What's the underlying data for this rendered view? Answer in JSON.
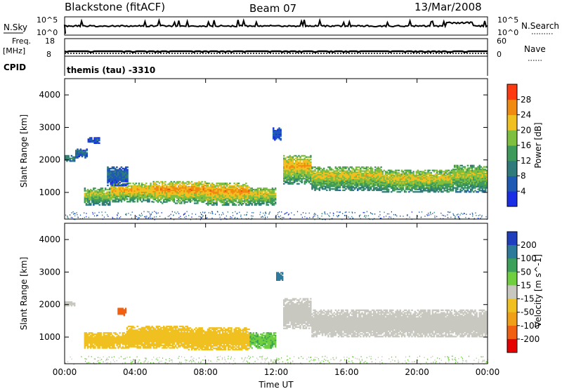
{
  "header": {
    "station": "Blackstone (fitACF)",
    "beam": "Beam 07",
    "date": "13/Mar/2008"
  },
  "strip_labels": {
    "nsky": "N.Sky",
    "nsky_hi": "10^5",
    "nsky_lo": "10^0",
    "nsearch": "N.Search",
    "nsearch_hi": "10^5",
    "nsearch_lo": "10^0",
    "freq_line1": "Freq.",
    "freq_line2": "[MHz]",
    "freq_hi": "18",
    "freq_lo": "8",
    "nave": "Nave",
    "nave_hi": "60",
    "nave_lo": "0",
    "cpid": "CPID",
    "cpid_value": "themis (tau) -3310"
  },
  "chart_data": [
    {
      "type": "heatmap",
      "panel": "power",
      "ylabel": "Slant Range [km]",
      "xlabel": "",
      "x_ticks": [
        "00:00",
        "04:00",
        "08:00",
        "12:00",
        "16:00",
        "20:00",
        "00:00"
      ],
      "x_range_hours": [
        0,
        24
      ],
      "y_ticks": [
        1000,
        2000,
        3000,
        4000
      ],
      "y_range_km": [
        180,
        4500
      ],
      "colorbar": {
        "label": "Power [dB]",
        "ticks": [
          4,
          8,
          12,
          16,
          20,
          24,
          28
        ],
        "range": [
          0,
          32
        ],
        "colors": [
          "#1a2ee6",
          "#1e5ab4",
          "#2f7a7a",
          "#3e9a5a",
          "#7fbf3f",
          "#f0c020",
          "#f08a10",
          "#ff3a10",
          "#e60000"
        ]
      },
      "series": [
        {
          "start_h": 0.0,
          "end_h": 0.6,
          "lo_km": 1950,
          "hi_km": 2150,
          "value": 12
        },
        {
          "start_h": 0.6,
          "end_h": 1.3,
          "lo_km": 2050,
          "hi_km": 2350,
          "value": 8
        },
        {
          "start_h": 1.3,
          "end_h": 2.0,
          "lo_km": 2500,
          "hi_km": 2700,
          "value": 6
        },
        {
          "start_h": 1.1,
          "end_h": 2.6,
          "lo_km": 600,
          "hi_km": 1150,
          "value": 20
        },
        {
          "start_h": 2.6,
          "end_h": 5.0,
          "lo_km": 700,
          "hi_km": 1300,
          "value": 24
        },
        {
          "start_h": 5.0,
          "end_h": 8.0,
          "lo_km": 650,
          "hi_km": 1350,
          "value": 26
        },
        {
          "start_h": 8.0,
          "end_h": 10.5,
          "lo_km": 600,
          "hi_km": 1300,
          "value": 26
        },
        {
          "start_h": 10.5,
          "end_h": 12.0,
          "lo_km": 600,
          "hi_km": 1150,
          "value": 22
        },
        {
          "start_h": 2.4,
          "end_h": 3.6,
          "lo_km": 1200,
          "hi_km": 1800,
          "value": 8
        },
        {
          "start_h": 11.8,
          "end_h": 12.3,
          "lo_km": 2600,
          "hi_km": 3000,
          "value": 6
        },
        {
          "start_h": 12.4,
          "end_h": 14.0,
          "lo_km": 1250,
          "hi_km": 2150,
          "value": 24
        },
        {
          "start_h": 14.0,
          "end_h": 18.0,
          "lo_km": 1050,
          "hi_km": 1800,
          "value": 22
        },
        {
          "start_h": 18.0,
          "end_h": 22.0,
          "lo_km": 1000,
          "hi_km": 1700,
          "value": 22
        },
        {
          "start_h": 22.0,
          "end_h": 24.0,
          "lo_km": 1000,
          "hi_km": 1850,
          "value": 20
        }
      ]
    },
    {
      "type": "heatmap",
      "panel": "velocity",
      "ylabel": "Slant Range [km]",
      "xlabel": "Time UT",
      "x_ticks": [
        "00:00",
        "04:00",
        "08:00",
        "12:00",
        "16:00",
        "20:00",
        "00:00"
      ],
      "x_range_hours": [
        0,
        24
      ],
      "y_ticks": [
        1000,
        2000,
        3000,
        4000
      ],
      "y_range_km": [
        180,
        4500
      ],
      "colorbar": {
        "label": "Velocity [m s^-1]",
        "ticks": [
          200,
          100,
          50,
          15,
          -15,
          -50,
          -100,
          -200
        ],
        "colors": [
          "#1f3fbf",
          "#2e7a9a",
          "#3aa05a",
          "#6fcf3f",
          "#c8c8c0",
          "#f0c020",
          "#f0a018",
          "#f06010",
          "#e60000"
        ]
      },
      "series": [
        {
          "start_h": 0.0,
          "end_h": 0.6,
          "lo_km": 1950,
          "hi_km": 2100,
          "value": 0
        },
        {
          "start_h": 1.1,
          "end_h": 3.5,
          "lo_km": 650,
          "hi_km": 1150,
          "value": -40
        },
        {
          "start_h": 3.0,
          "end_h": 3.5,
          "lo_km": 1650,
          "hi_km": 1900,
          "value": -120
        },
        {
          "start_h": 3.5,
          "end_h": 7.0,
          "lo_km": 650,
          "hi_km": 1350,
          "value": -30
        },
        {
          "start_h": 7.0,
          "end_h": 10.5,
          "lo_km": 600,
          "hi_km": 1300,
          "value": -25
        },
        {
          "start_h": 10.5,
          "end_h": 12.0,
          "lo_km": 650,
          "hi_km": 1150,
          "value": 45
        },
        {
          "start_h": 12.0,
          "end_h": 12.4,
          "lo_km": 2700,
          "hi_km": 3000,
          "value": 150
        },
        {
          "start_h": 12.4,
          "end_h": 14.0,
          "lo_km": 1250,
          "hi_km": 2200,
          "value": 0
        },
        {
          "start_h": 14.0,
          "end_h": 24.0,
          "lo_km": 1000,
          "hi_km": 1850,
          "value": 0
        }
      ]
    }
  ]
}
